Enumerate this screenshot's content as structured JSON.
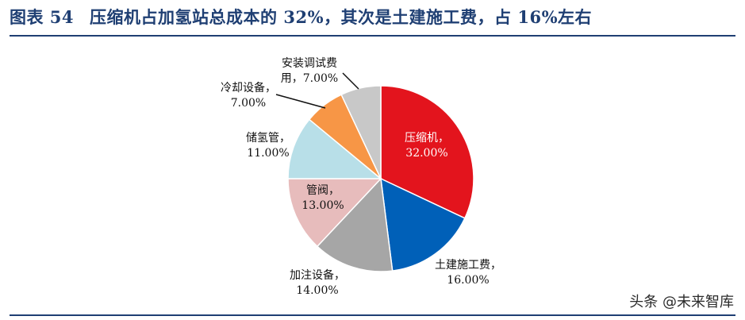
{
  "title": {
    "figure_label": "图表 54",
    "text": "压缩机占加氢站总成本的 32%，其次是土建施工费，占 16%左右"
  },
  "watermark": "头条 @未来智库",
  "colors": {
    "title": "#1f3f73",
    "rule": "#1f3f73"
  },
  "chart_data": {
    "type": "pie",
    "start_angle_deg": 90,
    "direction": "clockwise",
    "slices": [
      {
        "label": "压缩机",
        "value_label": "32.00%",
        "value": 32.0,
        "color": "#e3141d",
        "label_color": "#ffffff",
        "placement": "inside"
      },
      {
        "label": "土建施工费",
        "value_label": "16.00%",
        "value": 16.0,
        "color": "#0060b8",
        "label_color": "#111111",
        "placement": "outside-bottom-right"
      },
      {
        "label": "加注设备",
        "value_label": "14.00%",
        "value": 14.0,
        "color": "#a6a6a6",
        "label_color": "#111111",
        "placement": "outside-bottom-left"
      },
      {
        "label": "管阀",
        "value_label": "13.00%",
        "value": 13.0,
        "color": "#e7bcbc",
        "label_color": "#111111",
        "placement": "inside"
      },
      {
        "label": "储氢管",
        "value_label": "11.00%",
        "value": 11.0,
        "color": "#b8dfe8",
        "label_color": "#111111",
        "placement": "outside-left"
      },
      {
        "label": "冷却设备",
        "value_label": "7.00%",
        "value": 7.0,
        "color": "#f79646",
        "label_color": "#111111",
        "placement": "outside-upper-left",
        "label_lines": [
          "冷却设备，",
          "7.00%"
        ],
        "leader": true
      },
      {
        "label": "安装调试费用",
        "value_label": "7.00%",
        "value": 7.0,
        "color": "#c8c8c8",
        "label_color": "#111111",
        "placement": "outside-top",
        "label_lines": [
          "安装调试费",
          "用，7.00%"
        ],
        "leader": true
      }
    ]
  }
}
